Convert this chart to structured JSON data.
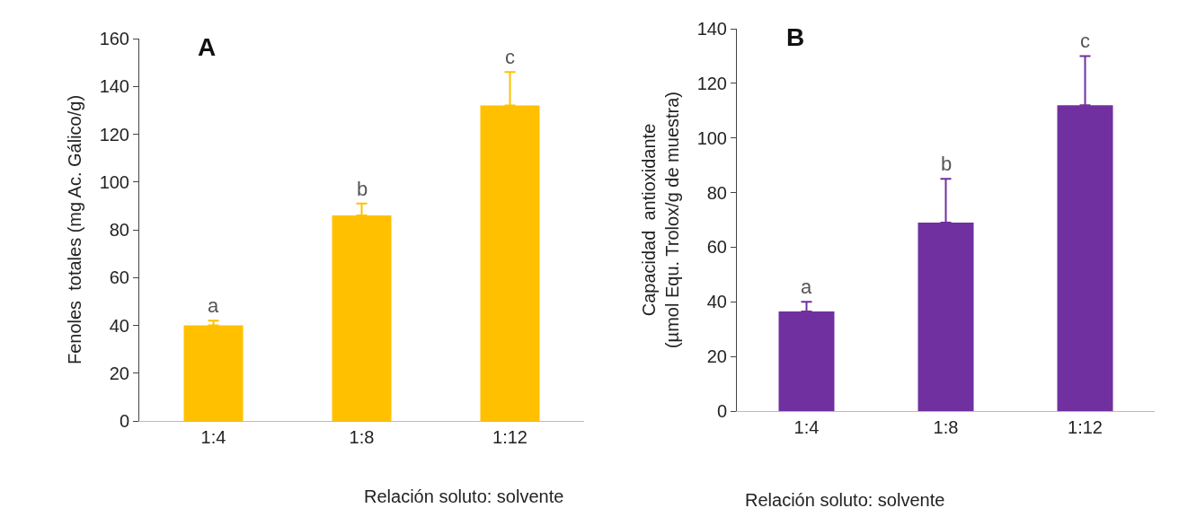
{
  "chart_data": [
    {
      "type": "bar",
      "categories": [
        "1:4",
        "1:8",
        "1:12"
      ],
      "values": [
        40,
        86,
        132
      ],
      "errors": [
        [
          40,
          42
        ],
        [
          86,
          91
        ],
        [
          132,
          146
        ]
      ],
      "color": "#ffc000",
      "xlabel": "Relación soluto: solvente",
      "ylabel": "Fenoles  totales (mg Ac. Gálico/g)",
      "ylim": [
        0,
        160
      ],
      "yticks": [
        0,
        20,
        40,
        60,
        80,
        100,
        120,
        140,
        160
      ],
      "legend": false,
      "annotations": [
        "A",
        {
          "text": "a",
          "x": "1:4",
          "y": 42
        },
        {
          "text": "b",
          "x": "1:8",
          "y": 91
        },
        {
          "text": "c",
          "x": "1:12",
          "y": 146
        }
      ]
    },
    {
      "type": "bar",
      "categories": [
        "1:4",
        "1:8",
        "1:12"
      ],
      "values": [
        36.5,
        69,
        112
      ],
      "errors": [
        [
          36.5,
          40
        ],
        [
          69,
          85
        ],
        [
          112,
          130
        ]
      ],
      "color": "#7030a0",
      "xlabel": "Relación soluto: solvente",
      "ylabel": "Capacidad  antioxidante\n(µmol Equ. Trolox/g de muestra)",
      "ylim": [
        0,
        140
      ],
      "yticks": [
        0,
        20,
        40,
        60,
        80,
        100,
        120,
        140
      ],
      "legend": false,
      "annotations": [
        "B",
        {
          "text": "a",
          "x": "1:4",
          "y": 40
        },
        {
          "text": "b",
          "x": "1:8",
          "y": 85
        },
        {
          "text": "c",
          "x": "1:12",
          "y": 130
        }
      ]
    }
  ]
}
